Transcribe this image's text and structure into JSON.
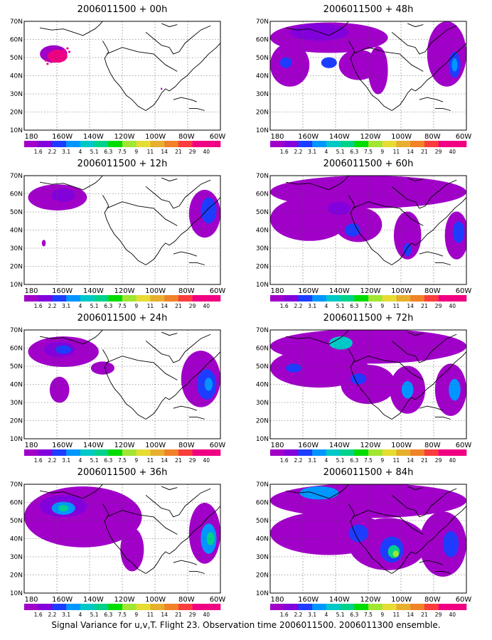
{
  "figure": {
    "caption": "Signal Variance for u,v,T. Flight 23. Observation time 2006011500. 2006011300 ensemble."
  },
  "axes": {
    "lat_labels": [
      "70N",
      "60N",
      "50N",
      "40N",
      "30N",
      "20N",
      "10N"
    ],
    "lon_labels": [
      "180",
      "160W",
      "140W",
      "120W",
      "100W",
      "80W",
      "60W"
    ]
  },
  "colorbar": {
    "levels": [
      "1.6",
      "2.2",
      "3.1",
      "4",
      "5.1",
      "6.3",
      "7.5",
      "9",
      "11",
      "14",
      "21",
      "29",
      "40"
    ],
    "colors": [
      "#a000c8",
      "#8200dc",
      "#1e3cff",
      "#0096ff",
      "#00c8c8",
      "#00d28c",
      "#00dc00",
      "#a0e632",
      "#e6dc32",
      "#e6af2d",
      "#f08228",
      "#fa3c3c",
      "#f00082",
      "#f00082"
    ]
  },
  "panels": [
    {
      "title": "2006011500 + 00h",
      "id": "h00"
    },
    {
      "title": "2006011500 + 48h",
      "id": "h48"
    },
    {
      "title": "2006011500 + 12h",
      "id": "h12"
    },
    {
      "title": "2006011500 + 60h",
      "id": "h60"
    },
    {
      "title": "2006011500 + 24h",
      "id": "h24"
    },
    {
      "title": "2006011500 + 72h",
      "id": "h72"
    },
    {
      "title": "2006011500 + 36h",
      "id": "h36"
    },
    {
      "title": "2006011500 + 84h",
      "id": "h84"
    }
  ]
}
